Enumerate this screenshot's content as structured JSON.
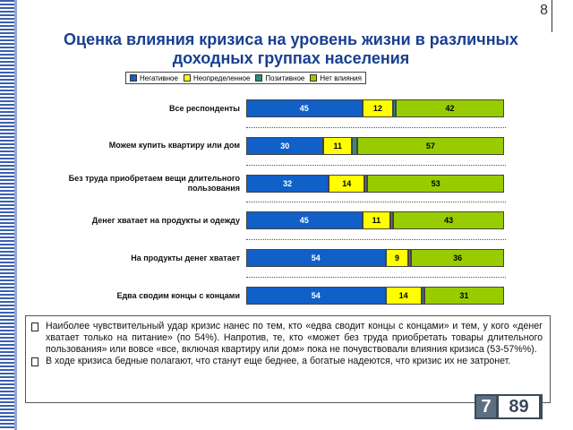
{
  "slide_number": "8",
  "chart_data": {
    "type": "bar",
    "orientation": "horizontal",
    "stacked": true,
    "title": "Оценка влияния кризиса на уровень жизни в различных доходных группах населения",
    "categories": [
      "Все респонденты",
      "Можем купить квартиру или дом",
      "Без труда приобретаем вещи длительного пользования",
      "Денег хватает на продукты и одежду",
      "На продукты денег хватает",
      "Едва сводим концы с концами"
    ],
    "series": [
      {
        "name": "Негативное",
        "color": "#1060c8",
        "text_color": "#ffffff",
        "values": [
          45,
          30,
          32,
          45,
          54,
          54
        ],
        "labels": true
      },
      {
        "name": "Неопределенное",
        "color": "#ffff00",
        "text_color": "#000000",
        "values": [
          12,
          11,
          14,
          11,
          9,
          14
        ],
        "labels": true
      },
      {
        "name": "Позитивное",
        "color": "#2a8f7a",
        "text_color": "#000000",
        "values": [
          1,
          2,
          1,
          1,
          1,
          1
        ],
        "labels": false
      },
      {
        "name": "Нет влияния",
        "color": "#99cc00",
        "text_color": "#000000",
        "values": [
          42,
          57,
          53,
          43,
          36,
          31
        ],
        "labels": true
      }
    ],
    "xlim": [
      0,
      100
    ],
    "legend": "top"
  },
  "bullets": [
    "Наиболее чувствительный удар кризис нанес по тем, кто «едва сводит концы с концами» и тем, у кого «денег хватает только на питание» (по 54%). Напротив, те, кто «может без труда приобретать товары длительного пользования» или вовсе «все, включая квартиру или дом» пока не почувствовали влияния кризиса (53-57%%).",
    "В ходе кризиса бедные полагают, что станут еще беднее, а богатые надеются, что кризис их не затронет."
  ],
  "logo": {
    "left": "7",
    "right": "89"
  }
}
